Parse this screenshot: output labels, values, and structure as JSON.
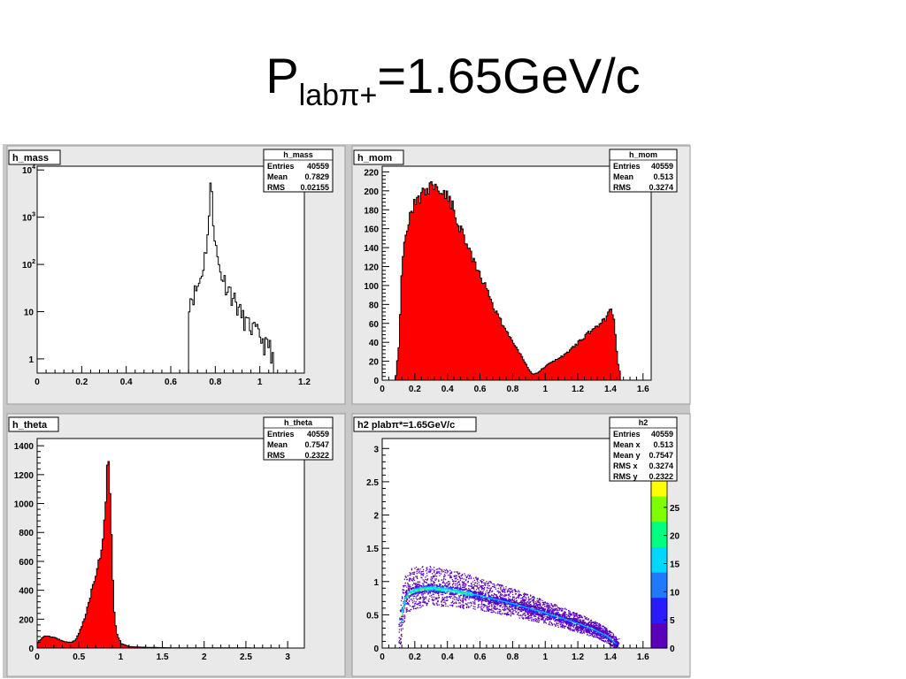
{
  "slide": {
    "title_main": "P",
    "title_sub": "labπ+",
    "title_rest": "=1.65GeV/c"
  },
  "colors": {
    "panel_bg": "#e9e9e9",
    "frame_bg": "#ffffff",
    "fill": "#ff0000",
    "line": "#000000"
  },
  "chart_data": [
    {
      "type": "histogram",
      "name": "h_mass",
      "fill": "none",
      "log_y": true,
      "xlim": [
        0,
        1.2
      ],
      "ylim": [
        0.5,
        12000
      ],
      "x_ticks": [
        0,
        0.2,
        0.4,
        0.6,
        0.8,
        1,
        1.2
      ],
      "x_tick_labels": [
        "0",
        "0.2",
        "0.4",
        "0.6",
        "0.8",
        "1",
        "1.2"
      ],
      "y_ticks": [
        10000,
        1000,
        100,
        10,
        1
      ],
      "y_tick_labels": [
        {
          "base": "10",
          "exp": "4"
        },
        {
          "base": "10",
          "exp": "3"
        },
        {
          "base": "10",
          "exp": "2"
        },
        {
          "base": "10",
          "exp": ""
        },
        {
          "base": "1",
          "exp": ""
        }
      ],
      "x": [
        0.68,
        0.7,
        0.72,
        0.73,
        0.74,
        0.75,
        0.76,
        0.77,
        0.775,
        0.78,
        0.785,
        0.79,
        0.8,
        0.81,
        0.82,
        0.84,
        0.86,
        0.88,
        0.9,
        0.92,
        0.95,
        0.98,
        1.0,
        1.02,
        1.04,
        1.06
      ],
      "values": [
        18,
        24,
        35,
        50,
        80,
        150,
        350,
        1100,
        4000,
        5500,
        2000,
        700,
        220,
        110,
        70,
        45,
        30,
        20,
        12,
        8,
        5,
        4,
        3,
        2,
        2,
        1
      ],
      "stats": {
        "title": "h_mass",
        "rows": [
          {
            "label": "Entries",
            "value": "40559"
          },
          {
            "label": "Mean",
            "value": "0.7829"
          },
          {
            "label": "RMS",
            "value": "0.02155"
          }
        ]
      }
    },
    {
      "type": "histogram",
      "name": "h_mom",
      "fill": "#ff0000",
      "log_y": false,
      "xlim": [
        0,
        1.65
      ],
      "ylim": [
        0,
        226
      ],
      "x_ticks": [
        0,
        0.2,
        0.4,
        0.6,
        0.8,
        1,
        1.2,
        1.4,
        1.6
      ],
      "x_tick_labels": [
        "0",
        "0.2",
        "0.4",
        "0.6",
        "0.8",
        "1",
        "1.2",
        "1.4",
        "1.6"
      ],
      "y_ticks": [
        0,
        20,
        40,
        60,
        80,
        100,
        120,
        140,
        160,
        180,
        200,
        220
      ],
      "y_tick_labels": [
        "0",
        "20",
        "40",
        "60",
        "80",
        "100",
        "120",
        "140",
        "160",
        "180",
        "200",
        "220"
      ],
      "x": [
        0.08,
        0.1,
        0.12,
        0.14,
        0.16,
        0.18,
        0.2,
        0.22,
        0.24,
        0.26,
        0.28,
        0.3,
        0.32,
        0.34,
        0.36,
        0.38,
        0.4,
        0.42,
        0.44,
        0.46,
        0.48,
        0.5,
        0.55,
        0.6,
        0.65,
        0.7,
        0.75,
        0.8,
        0.85,
        0.9,
        0.92,
        0.95,
        1.0,
        1.05,
        1.1,
        1.15,
        1.2,
        1.25,
        1.3,
        1.35,
        1.38,
        1.4,
        1.42,
        1.44,
        1.46
      ],
      "values": [
        5,
        40,
        130,
        160,
        170,
        180,
        185,
        190,
        195,
        200,
        205,
        205,
        205,
        200,
        200,
        198,
        195,
        185,
        178,
        168,
        160,
        150,
        130,
        110,
        90,
        70,
        55,
        40,
        25,
        10,
        6,
        8,
        15,
        20,
        25,
        32,
        40,
        48,
        55,
        62,
        68,
        75,
        60,
        20,
        3
      ],
      "stats": {
        "title": "h_mom",
        "rows": [
          {
            "label": "Entries",
            "value": "40559"
          },
          {
            "label": "Mean",
            "value": "0.513"
          },
          {
            "label": "RMS",
            "value": "0.3274"
          }
        ]
      }
    },
    {
      "type": "histogram",
      "name": "h_theta",
      "fill": "#ff0000",
      "log_y": false,
      "xlim": [
        0,
        3.2
      ],
      "ylim": [
        0,
        1450
      ],
      "x_ticks": [
        0,
        0.5,
        1,
        1.5,
        2,
        2.5,
        3
      ],
      "x_tick_labels": [
        "0",
        "0.5",
        "1",
        "1.5",
        "2",
        "2.5",
        "3"
      ],
      "y_ticks": [
        0,
        200,
        400,
        600,
        800,
        1000,
        1200,
        1400
      ],
      "y_tick_labels": [
        "0",
        "200",
        "400",
        "600",
        "800",
        "1000",
        "1200",
        "1400"
      ],
      "x": [
        0.0,
        0.05,
        0.1,
        0.15,
        0.2,
        0.25,
        0.3,
        0.35,
        0.4,
        0.45,
        0.5,
        0.55,
        0.6,
        0.65,
        0.7,
        0.75,
        0.78,
        0.8,
        0.82,
        0.84,
        0.86,
        0.88,
        0.9,
        0.92,
        0.95,
        1.0,
        1.1,
        1.3,
        1.6,
        2.0,
        2.5,
        3.0
      ],
      "values": [
        40,
        70,
        85,
        80,
        75,
        60,
        50,
        40,
        40,
        55,
        110,
        190,
        290,
        420,
        520,
        640,
        760,
        880,
        1100,
        1380,
        1150,
        800,
        450,
        200,
        90,
        30,
        10,
        5,
        2,
        1,
        1,
        0
      ],
      "stats": {
        "title": "h_theta",
        "rows": [
          {
            "label": "Entries",
            "value": "40559"
          },
          {
            "label": "Mean",
            "value": "0.7547"
          },
          {
            "label": "RMS",
            "value": "0.2322"
          }
        ]
      }
    },
    {
      "type": "heatmap",
      "name": "h2 plab",
      "title_sym": "π",
      "title_rest": "*=1.65GeV/c",
      "xlim": [
        0,
        1.65
      ],
      "ylim": [
        0,
        3.15
      ],
      "x_ticks": [
        0,
        0.2,
        0.4,
        0.6,
        0.8,
        1,
        1.2,
        1.4,
        1.6
      ],
      "x_tick_labels": [
        "0",
        "0.2",
        "0.4",
        "0.6",
        "0.8",
        "1",
        "1.2",
        "1.4",
        "1.6"
      ],
      "y_ticks": [
        0,
        0.5,
        1,
        1.5,
        2,
        2.5,
        3
      ],
      "y_tick_labels": [
        "0",
        "0.5",
        "1",
        "1.5",
        "2",
        "2.5",
        "3"
      ],
      "z_ticks": [
        0,
        5,
        10,
        15,
        20,
        25
      ],
      "z_tick_labels": [
        "0",
        "5",
        "10",
        "15",
        "20",
        "25"
      ],
      "zlim": [
        0,
        30
      ],
      "ridge_x": [
        0.11,
        0.12,
        0.14,
        0.16,
        0.2,
        0.25,
        0.3,
        0.4,
        0.5,
        0.6,
        0.7,
        0.8,
        0.9,
        1.0,
        1.1,
        1.2,
        1.3,
        1.38,
        1.42,
        1.44
      ],
      "ridge_y": [
        0.3,
        0.55,
        0.75,
        0.83,
        0.88,
        0.9,
        0.91,
        0.88,
        0.84,
        0.79,
        0.73,
        0.67,
        0.6,
        0.53,
        0.45,
        0.37,
        0.28,
        0.18,
        0.1,
        0.04
      ],
      "stats": {
        "title": "h2",
        "rows": [
          {
            "label": "Entries",
            "value": "40559"
          },
          {
            "label": "Mean x",
            "value": "0.513"
          },
          {
            "label": "Mean y",
            "value": "0.7547"
          },
          {
            "label": "RMS x",
            "value": "0.3274"
          },
          {
            "label": "RMS y",
            "value": "0.2322"
          }
        ]
      }
    }
  ]
}
